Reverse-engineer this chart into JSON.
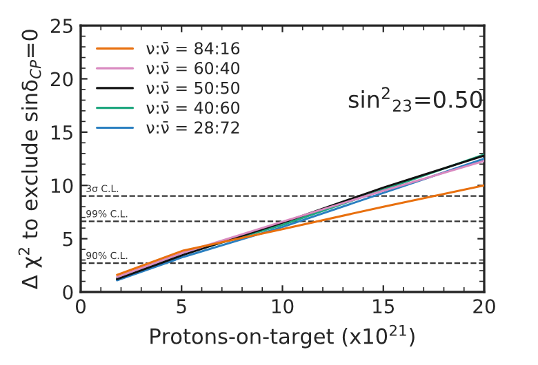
{
  "chart_data": {
    "type": "line",
    "xlabel": "Protons-on-target (x10$^{21}$)",
    "ylabel": "Δ χ$^{2}$ to exclude sinδ$_{CP}$=0",
    "x": [
      1.8,
      5.1,
      10,
      15,
      20
    ],
    "series": [
      {
        "name": "ν:ν̄ = 84:16",
        "color": "#e8700f",
        "values": [
          1.6,
          3.9,
          5.9,
          8.0,
          10.0
        ]
      },
      {
        "name": "ν:ν̄ = 60:40",
        "color": "#d98ac0",
        "values": [
          1.4,
          3.7,
          6.6,
          9.5,
          12.3
        ]
      },
      {
        "name": "ν:ν̄ = 50:50",
        "color": "#111111",
        "values": [
          1.2,
          3.5,
          6.5,
          9.8,
          12.8
        ]
      },
      {
        "name": "ν:ν̄ = 40:60",
        "color": "#1fa67e",
        "values": [
          1.3,
          3.6,
          6.3,
          9.6,
          12.9
        ]
      },
      {
        "name": "ν:ν̄ = 28:72",
        "color": "#2a7fc0",
        "values": [
          1.1,
          3.3,
          6.1,
          9.3,
          12.5
        ]
      }
    ],
    "xlim": [
      0,
      20
    ],
    "xticks": [
      0,
      5,
      10,
      15,
      20
    ],
    "ylim": [
      0,
      25
    ],
    "yticks": [
      0,
      5,
      10,
      15,
      20,
      25
    ],
    "ref_lines": [
      {
        "axis": "y",
        "value": 9,
        "label": "3σ C.L.",
        "color": "#333333",
        "line_style": "dashed"
      },
      {
        "axis": "y",
        "value": 6.63,
        "label": "99% C.L.",
        "color": "#333333",
        "line_style": "dashed"
      },
      {
        "axis": "y",
        "value": 2.71,
        "label": "90% C.L.",
        "color": "#333333",
        "line_style": "dashed"
      }
    ],
    "annotations": [
      "sin$^{2}$$_{23}$=0.50"
    ],
    "legend": "top left",
    "grid": false,
    "marker": "none",
    "line_style": "solid"
  }
}
